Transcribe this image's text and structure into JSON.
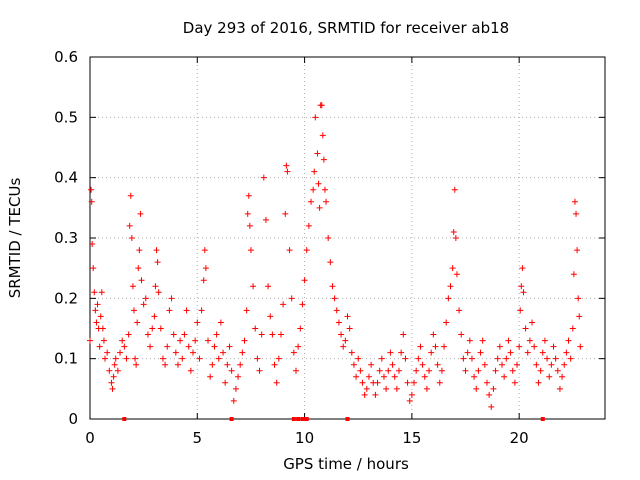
{
  "chart_data": {
    "type": "scatter",
    "title": "Day 293 of 2016, SRMTID for receiver ab18",
    "xlabel": "GPS time / hours",
    "ylabel": "SRMTID / TECUs",
    "xlim": [
      0,
      24
    ],
    "ylim": [
      0,
      0.6
    ],
    "x_ticks": [
      0,
      5,
      10,
      15,
      20
    ],
    "y_ticks": [
      0,
      0.1,
      0.2,
      0.3,
      0.4,
      0.5,
      0.6
    ],
    "x_tick_labels": [
      "0",
      "5",
      "10",
      "15",
      "20"
    ],
    "y_tick_labels": [
      "0",
      "0.1",
      "0.2",
      "0.3",
      "0.4",
      "0.5",
      "0.6"
    ],
    "grid": true,
    "marker": "+",
    "color": "#ff0000",
    "series": [
      {
        "name": "SRMTID",
        "points": [
          [
            0.0,
            0.13
          ],
          [
            0.05,
            0.38
          ],
          [
            0.08,
            0.36
          ],
          [
            0.1,
            0.29
          ],
          [
            0.15,
            0.25
          ],
          [
            0.2,
            0.21
          ],
          [
            0.25,
            0.18
          ],
          [
            0.3,
            0.16
          ],
          [
            0.35,
            0.19
          ],
          [
            0.4,
            0.15
          ],
          [
            0.45,
            0.12
          ],
          [
            0.5,
            0.17
          ],
          [
            0.55,
            0.21
          ],
          [
            0.6,
            0.15
          ],
          [
            0.65,
            0.13
          ],
          [
            0.7,
            0.1
          ],
          [
            0.8,
            0.11
          ],
          [
            0.9,
            0.08
          ],
          [
            1.0,
            0.06
          ],
          [
            1.05,
            0.05
          ],
          [
            1.1,
            0.07
          ],
          [
            1.15,
            0.09
          ],
          [
            1.2,
            0.1
          ],
          [
            1.3,
            0.08
          ],
          [
            1.4,
            0.11
          ],
          [
            1.5,
            0.13
          ],
          [
            1.6,
            0.12
          ],
          [
            1.7,
            0.1
          ],
          [
            1.8,
            0.14
          ],
          [
            1.85,
            0.32
          ],
          [
            1.9,
            0.37
          ],
          [
            1.95,
            0.3
          ],
          [
            2.0,
            0.22
          ],
          [
            2.05,
            0.18
          ],
          [
            2.1,
            0.1
          ],
          [
            2.15,
            0.09
          ],
          [
            2.2,
            0.16
          ],
          [
            2.25,
            0.25
          ],
          [
            2.3,
            0.28
          ],
          [
            2.35,
            0.34
          ],
          [
            2.4,
            0.23
          ],
          [
            2.5,
            0.19
          ],
          [
            2.6,
            0.2
          ],
          [
            2.7,
            0.14
          ],
          [
            2.8,
            0.12
          ],
          [
            2.9,
            0.15
          ],
          [
            3.0,
            0.17
          ],
          [
            3.05,
            0.22
          ],
          [
            3.1,
            0.28
          ],
          [
            3.15,
            0.26
          ],
          [
            3.2,
            0.21
          ],
          [
            3.3,
            0.15
          ],
          [
            3.4,
            0.1
          ],
          [
            3.5,
            0.09
          ],
          [
            3.6,
            0.12
          ],
          [
            3.7,
            0.18
          ],
          [
            3.8,
            0.2
          ],
          [
            3.9,
            0.14
          ],
          [
            4.0,
            0.11
          ],
          [
            4.1,
            0.09
          ],
          [
            4.2,
            0.13
          ],
          [
            4.3,
            0.1
          ],
          [
            4.4,
            0.14
          ],
          [
            4.5,
            0.18
          ],
          [
            4.6,
            0.12
          ],
          [
            4.7,
            0.08
          ],
          [
            4.8,
            0.11
          ],
          [
            4.9,
            0.13
          ],
          [
            5.0,
            0.16
          ],
          [
            5.1,
            0.1
          ],
          [
            5.2,
            0.18
          ],
          [
            5.3,
            0.23
          ],
          [
            5.35,
            0.28
          ],
          [
            5.4,
            0.25
          ],
          [
            5.5,
            0.13
          ],
          [
            5.6,
            0.07
          ],
          [
            5.7,
            0.09
          ],
          [
            5.8,
            0.12
          ],
          [
            5.9,
            0.14
          ],
          [
            6.0,
            0.1
          ],
          [
            6.1,
            0.16
          ],
          [
            6.2,
            0.11
          ],
          [
            6.3,
            0.06
          ],
          [
            6.4,
            0.09
          ],
          [
            6.5,
            0.12
          ],
          [
            6.6,
            0.08
          ],
          [
            6.7,
            0.03
          ],
          [
            6.8,
            0.05
          ],
          [
            6.9,
            0.07
          ],
          [
            7.0,
            0.09
          ],
          [
            7.1,
            0.11
          ],
          [
            7.2,
            0.13
          ],
          [
            7.3,
            0.18
          ],
          [
            7.35,
            0.34
          ],
          [
            7.4,
            0.37
          ],
          [
            7.45,
            0.32
          ],
          [
            7.5,
            0.28
          ],
          [
            7.6,
            0.22
          ],
          [
            7.7,
            0.15
          ],
          [
            7.8,
            0.1
          ],
          [
            7.9,
            0.08
          ],
          [
            8.0,
            0.14
          ],
          [
            8.1,
            0.4
          ],
          [
            8.2,
            0.33
          ],
          [
            8.3,
            0.22
          ],
          [
            8.4,
            0.17
          ],
          [
            8.5,
            0.14
          ],
          [
            8.6,
            0.09
          ],
          [
            8.7,
            0.06
          ],
          [
            8.8,
            0.1
          ],
          [
            8.9,
            0.14
          ],
          [
            9.0,
            0.19
          ],
          [
            9.1,
            0.34
          ],
          [
            9.15,
            0.42
          ],
          [
            9.2,
            0.41
          ],
          [
            9.3,
            0.28
          ],
          [
            9.4,
            0.2
          ],
          [
            9.5,
            0.11
          ],
          [
            9.6,
            0.08
          ],
          [
            9.7,
            0.12
          ],
          [
            9.8,
            0.15
          ],
          [
            9.9,
            0.19
          ],
          [
            10.0,
            0.23
          ],
          [
            10.1,
            0.28
          ],
          [
            10.2,
            0.32
          ],
          [
            10.3,
            0.36
          ],
          [
            10.4,
            0.38
          ],
          [
            10.45,
            0.41
          ],
          [
            10.5,
            0.5
          ],
          [
            10.6,
            0.44
          ],
          [
            10.65,
            0.39
          ],
          [
            10.7,
            0.35
          ],
          [
            10.75,
            0.52
          ],
          [
            10.8,
            0.52
          ],
          [
            10.85,
            0.47
          ],
          [
            10.9,
            0.43
          ],
          [
            10.95,
            0.38
          ],
          [
            11.0,
            0.36
          ],
          [
            11.1,
            0.3
          ],
          [
            11.2,
            0.26
          ],
          [
            11.3,
            0.22
          ],
          [
            11.4,
            0.2
          ],
          [
            11.5,
            0.18
          ],
          [
            11.6,
            0.16
          ],
          [
            11.7,
            0.14
          ],
          [
            11.8,
            0.12
          ],
          [
            11.9,
            0.13
          ],
          [
            12.0,
            0.17
          ],
          [
            12.1,
            0.15
          ],
          [
            12.2,
            0.11
          ],
          [
            12.3,
            0.09
          ],
          [
            12.4,
            0.07
          ],
          [
            12.5,
            0.1
          ],
          [
            12.6,
            0.08
          ],
          [
            12.7,
            0.06
          ],
          [
            12.8,
            0.04
          ],
          [
            12.9,
            0.05
          ],
          [
            13.0,
            0.07
          ],
          [
            13.1,
            0.09
          ],
          [
            13.2,
            0.06
          ],
          [
            13.3,
            0.04
          ],
          [
            13.4,
            0.06
          ],
          [
            13.5,
            0.08
          ],
          [
            13.6,
            0.1
          ],
          [
            13.7,
            0.07
          ],
          [
            13.8,
            0.05
          ],
          [
            13.9,
            0.08
          ],
          [
            14.0,
            0.11
          ],
          [
            14.1,
            0.09
          ],
          [
            14.2,
            0.07
          ],
          [
            14.3,
            0.05
          ],
          [
            14.4,
            0.08
          ],
          [
            14.5,
            0.11
          ],
          [
            14.6,
            0.14
          ],
          [
            14.7,
            0.1
          ],
          [
            14.8,
            0.06
          ],
          [
            14.9,
            0.03
          ],
          [
            15.0,
            0.04
          ],
          [
            15.1,
            0.06
          ],
          [
            15.2,
            0.08
          ],
          [
            15.3,
            0.1
          ],
          [
            15.4,
            0.12
          ],
          [
            15.5,
            0.09
          ],
          [
            15.6,
            0.07
          ],
          [
            15.7,
            0.05
          ],
          [
            15.8,
            0.08
          ],
          [
            15.9,
            0.11
          ],
          [
            16.0,
            0.14
          ],
          [
            16.1,
            0.12
          ],
          [
            16.2,
            0.09
          ],
          [
            16.3,
            0.06
          ],
          [
            16.4,
            0.08
          ],
          [
            16.5,
            0.12
          ],
          [
            16.6,
            0.16
          ],
          [
            16.7,
            0.2
          ],
          [
            16.8,
            0.22
          ],
          [
            16.9,
            0.25
          ],
          [
            16.95,
            0.31
          ],
          [
            17.0,
            0.38
          ],
          [
            17.05,
            0.3
          ],
          [
            17.1,
            0.24
          ],
          [
            17.2,
            0.18
          ],
          [
            17.3,
            0.14
          ],
          [
            17.4,
            0.1
          ],
          [
            17.5,
            0.08
          ],
          [
            17.6,
            0.11
          ],
          [
            17.7,
            0.13
          ],
          [
            17.8,
            0.1
          ],
          [
            17.9,
            0.07
          ],
          [
            18.0,
            0.05
          ],
          [
            18.1,
            0.08
          ],
          [
            18.2,
            0.11
          ],
          [
            18.3,
            0.13
          ],
          [
            18.4,
            0.09
          ],
          [
            18.5,
            0.06
          ],
          [
            18.6,
            0.04
          ],
          [
            18.7,
            0.02
          ],
          [
            18.8,
            0.05
          ],
          [
            18.9,
            0.08
          ],
          [
            19.0,
            0.1
          ],
          [
            19.1,
            0.12
          ],
          [
            19.2,
            0.09
          ],
          [
            19.3,
            0.07
          ],
          [
            19.4,
            0.1
          ],
          [
            19.5,
            0.13
          ],
          [
            19.6,
            0.11
          ],
          [
            19.7,
            0.08
          ],
          [
            19.8,
            0.06
          ],
          [
            19.9,
            0.09
          ],
          [
            20.0,
            0.12
          ],
          [
            20.05,
            0.18
          ],
          [
            20.1,
            0.22
          ],
          [
            20.15,
            0.25
          ],
          [
            20.2,
            0.21
          ],
          [
            20.3,
            0.15
          ],
          [
            20.4,
            0.11
          ],
          [
            20.5,
            0.13
          ],
          [
            20.6,
            0.16
          ],
          [
            20.7,
            0.12
          ],
          [
            20.8,
            0.09
          ],
          [
            20.9,
            0.06
          ],
          [
            21.0,
            0.08
          ],
          [
            21.1,
            0.11
          ],
          [
            21.2,
            0.13
          ],
          [
            21.3,
            0.1
          ],
          [
            21.4,
            0.07
          ],
          [
            21.5,
            0.09
          ],
          [
            21.6,
            0.12
          ],
          [
            21.7,
            0.1
          ],
          [
            21.8,
            0.08
          ],
          [
            21.9,
            0.05
          ],
          [
            22.0,
            0.07
          ],
          [
            22.1,
            0.09
          ],
          [
            22.2,
            0.11
          ],
          [
            22.3,
            0.13
          ],
          [
            22.4,
            0.1
          ],
          [
            22.5,
            0.15
          ],
          [
            22.55,
            0.24
          ],
          [
            22.6,
            0.36
          ],
          [
            22.65,
            0.34
          ],
          [
            22.7,
            0.28
          ],
          [
            22.75,
            0.2
          ],
          [
            22.8,
            0.17
          ],
          [
            22.85,
            0.12
          ]
        ]
      }
    ],
    "zero_markers_x": [
      1.6,
      6.6,
      9.5,
      9.7,
      9.9,
      10.0,
      10.1,
      12.0,
      21.1
    ]
  }
}
